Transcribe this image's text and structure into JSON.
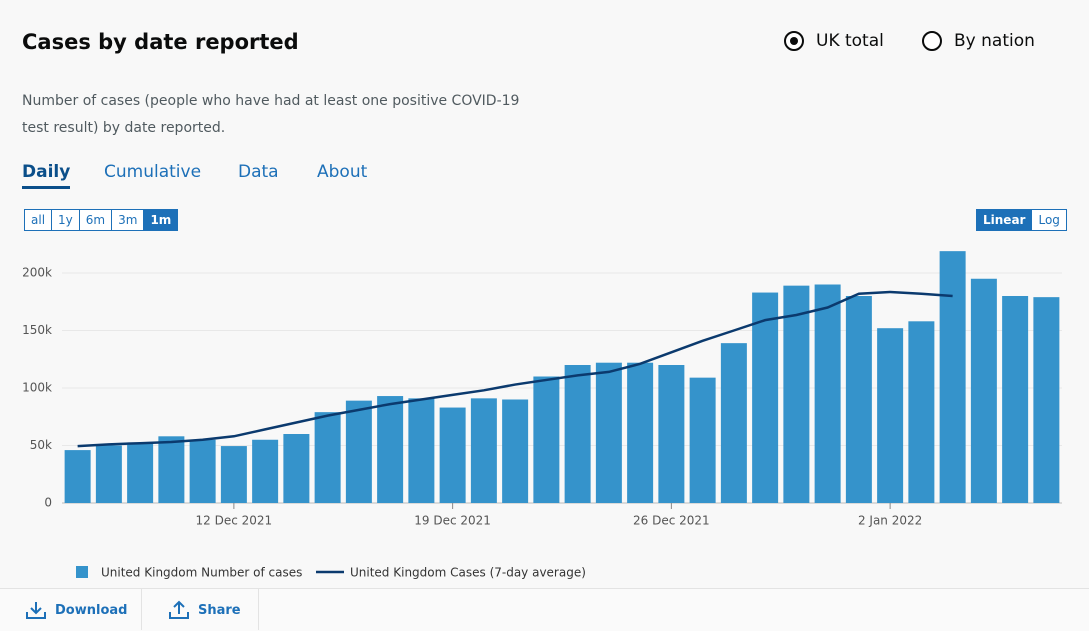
{
  "header": {
    "title": "Cases by date reported",
    "description": "Number of cases (people who have had at least one positive COVID-19 test result) by date reported."
  },
  "radios": [
    {
      "label": "UK total",
      "selected": true
    },
    {
      "label": "By nation",
      "selected": false
    }
  ],
  "tabs": [
    "Daily",
    "Cumulative",
    "Data",
    "About"
  ],
  "range_buttons": [
    "all",
    "1y",
    "6m",
    "3m",
    "1m"
  ],
  "scale_buttons": [
    "Linear",
    "Log"
  ],
  "actions": [
    "Download",
    "Share"
  ],
  "chart_data": {
    "type": "bar",
    "categories": [
      null,
      null,
      null,
      null,
      null,
      "12 Dec 2021",
      null,
      null,
      null,
      null,
      null,
      null,
      "19 Dec 2021",
      null,
      null,
      null,
      null,
      null,
      null,
      "26 Dec 2021",
      null,
      null,
      null,
      null,
      null,
      null,
      "2 Jan 2022",
      null,
      null,
      null,
      null,
      null
    ],
    "series": [
      {
        "name": "United Kingdom Number of cases",
        "type": "bar",
        "color": "#3593cb",
        "values": [
          46000,
          50000,
          52000,
          58000,
          55000,
          49500,
          55000,
          60000,
          79000,
          89000,
          93000,
          91000,
          83000,
          91000,
          90000,
          110000,
          120000,
          122000,
          122000,
          120000,
          109000,
          139000,
          183000,
          189000,
          190000,
          180000,
          152000,
          158000,
          219000,
          195000,
          180000,
          179000
        ]
      },
      {
        "name": "United Kingdom Cases (7-day average)",
        "type": "line",
        "color": "#0b3a6e",
        "values": [
          49500,
          51000,
          52000,
          53000,
          55000,
          58000,
          64000,
          70000,
          76000,
          81000,
          86000,
          90000,
          94000,
          98000,
          103000,
          107000,
          111000,
          114000,
          121000,
          131000,
          141000,
          150000,
          159000,
          163500,
          170000,
          182000,
          183500,
          182000,
          180000,
          null,
          null,
          null
        ]
      }
    ],
    "ylim": [
      0,
      220000
    ],
    "yticks": [
      0,
      {
        "value": 50000,
        "label": "50k"
      },
      {
        "value": 100000,
        "label": "100k"
      },
      {
        "value": 150000,
        "label": "150k"
      },
      {
        "value": 200000,
        "label": "200k"
      }
    ],
    "grid": true
  }
}
